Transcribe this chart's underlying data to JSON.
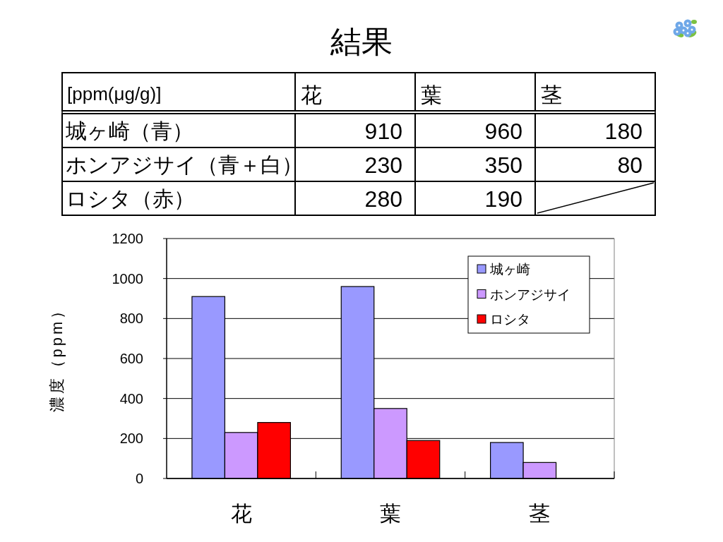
{
  "chart_data": [
    {
      "type": "other",
      "title": "結果",
      "annotations": [
        "[ppm(μg/g)]",
        "花",
        "葉",
        "茎",
        "城ヶ崎（青）",
        "910",
        "960",
        "180",
        "ホンアジサイ（青＋白）",
        "230",
        "350",
        "80",
        "ロシタ（赤）",
        "280",
        "190"
      ]
    },
    {
      "type": "bar",
      "categories": [
        "花",
        "葉",
        "茎"
      ],
      "series": [
        {
          "name": "城ヶ崎",
          "color": "#9999ff",
          "values": [
            910,
            960,
            180
          ]
        },
        {
          "name": "ホンアジサイ",
          "color": "#cc99ff",
          "values": [
            230,
            350,
            80
          ]
        },
        {
          "name": "ロシタ",
          "color": "#ff0000",
          "values": [
            280,
            190,
            null
          ]
        }
      ],
      "ylabel": "濃度（ppm）",
      "ylim": [
        0,
        1200
      ],
      "yticks": [
        0,
        200,
        400,
        600,
        800,
        1000,
        1200
      ],
      "grid": "y",
      "legend": "top right"
    }
  ]
}
